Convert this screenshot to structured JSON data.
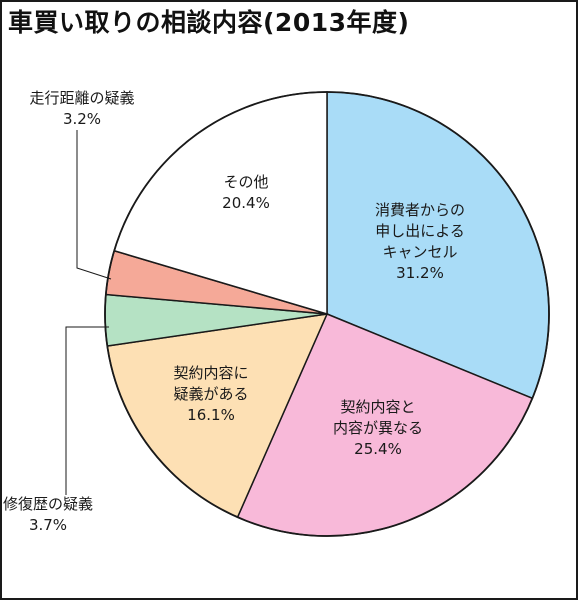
{
  "chart_data": {
    "type": "pie",
    "title": "車買い取りの相談内容(2013年度)",
    "start": "12 o'clock, clockwise",
    "slices": [
      {
        "label": [
          "消費者からの",
          "申し出による",
          "キャンセル"
        ],
        "value": 31.2,
        "value_label": "31.2%",
        "color": "#a9dcf7"
      },
      {
        "label": [
          "契約内容と",
          "内容が異なる"
        ],
        "value": 25.4,
        "value_label": "25.4%",
        "color": "#f8b9d9"
      },
      {
        "label": [
          "契約内容に",
          "疑義がある"
        ],
        "value": 16.1,
        "value_label": "16.1%",
        "color": "#fde0b4"
      },
      {
        "label": [
          "修復歴の疑義"
        ],
        "value": 3.7,
        "value_label": "3.7%",
        "color": "#b5e2c4"
      },
      {
        "label": [
          "走行距離の疑義"
        ],
        "value": 3.2,
        "value_label": "3.2%",
        "color": "#f5a998"
      },
      {
        "label": [
          "その他"
        ],
        "value": 20.4,
        "value_label": "20.4%",
        "color": "#ffffff"
      }
    ]
  }
}
